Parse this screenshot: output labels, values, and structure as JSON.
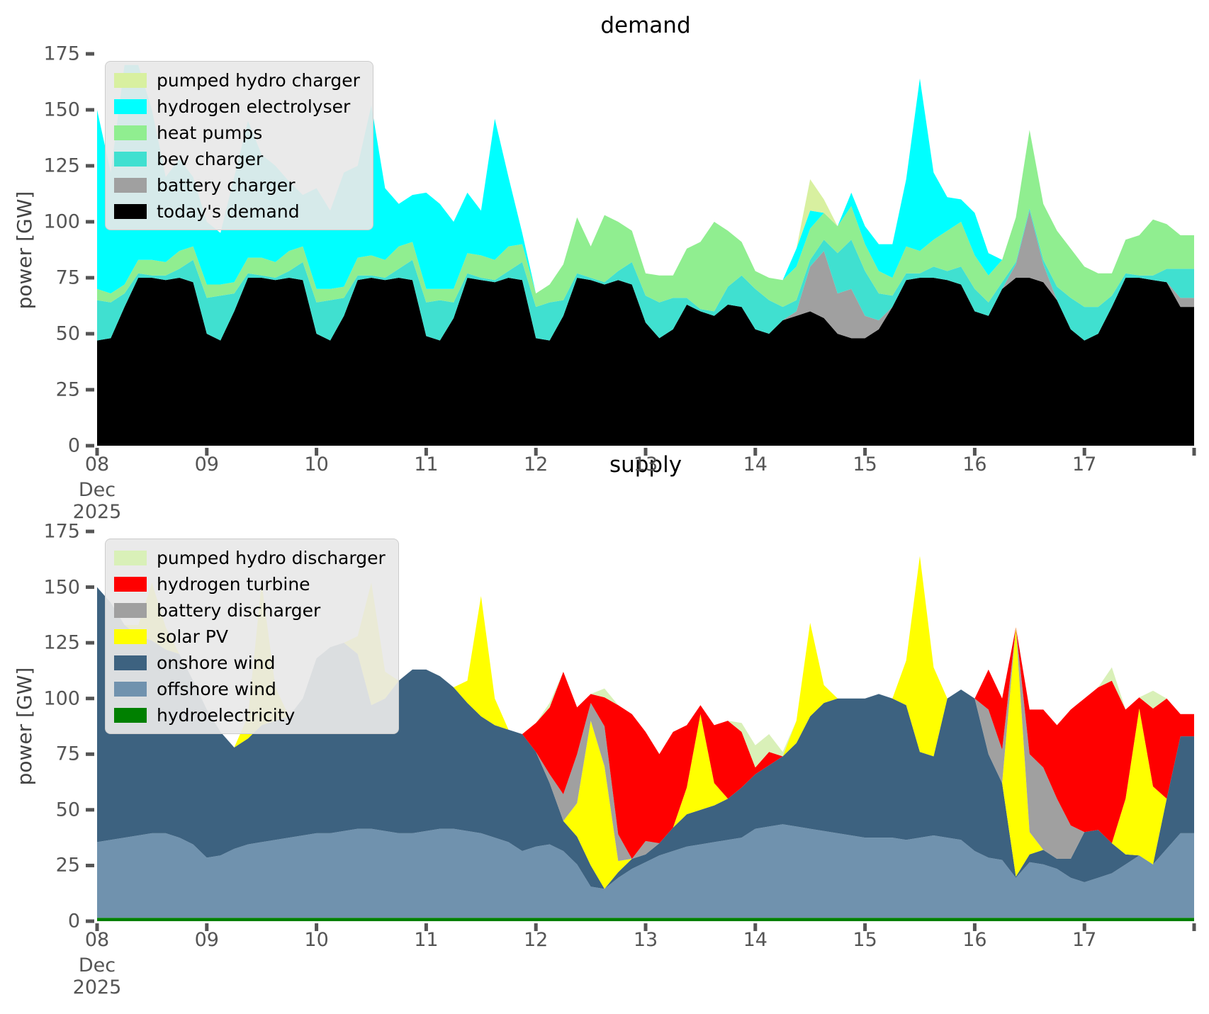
{
  "page": {
    "background": "#ffffff",
    "tick_color": "#555555",
    "text_color": "#000000"
  },
  "chart_data": [
    {
      "type": "area",
      "stacked": true,
      "title": "demand",
      "ylabel": "power [GW]",
      "ylim": [
        0,
        175
      ],
      "yticks": [
        0,
        25,
        50,
        75,
        100,
        125,
        150,
        175
      ],
      "x_tick_labels": [
        "08",
        "09",
        "10",
        "11",
        "12",
        "13",
        "14",
        "15",
        "16",
        "17"
      ],
      "x_first_tick_sublabels": [
        "Dec",
        "2025"
      ],
      "x_start": "Dec 08 2025 00:00",
      "x_step_hours": 3,
      "grid": false,
      "legend_position": "upper-left",
      "legend_order": [
        "pumped hydro charger",
        "hydrogen electrolyser",
        "heat pumps",
        "bev charger",
        "battery charger",
        "today's demand"
      ],
      "series": [
        {
          "name": "today's demand",
          "color": "#000000",
          "values": [
            47,
            48,
            62,
            75,
            75,
            74,
            75,
            73,
            50,
            47,
            60,
            75,
            75,
            74,
            75,
            74,
            50,
            47,
            58,
            74,
            75,
            74,
            75,
            74,
            49,
            47,
            57,
            75,
            74,
            73,
            75,
            74,
            48,
            47,
            58,
            75,
            74,
            72,
            74,
            72,
            55,
            48,
            52,
            63,
            60,
            58,
            63,
            62,
            52,
            50,
            56,
            58,
            60,
            57,
            50,
            48,
            48,
            52,
            62,
            74,
            75,
            75,
            74,
            72,
            60,
            58,
            70,
            75,
            75,
            73,
            65,
            52,
            47,
            50,
            62,
            75,
            75,
            74,
            73,
            62
          ]
        },
        {
          "name": "battery charger",
          "color": "#a0a0a0",
          "values": [
            0,
            0,
            0,
            0,
            0,
            0,
            0,
            0,
            0,
            0,
            0,
            0,
            0,
            0,
            0,
            0,
            0,
            0,
            0,
            0,
            0,
            0,
            0,
            0,
            0,
            0,
            0,
            0,
            0,
            0,
            0,
            0,
            0,
            0,
            0,
            0,
            0,
            0,
            0,
            0,
            0,
            0,
            0,
            0,
            0,
            0,
            0,
            0,
            0,
            0,
            0,
            2,
            20,
            30,
            18,
            22,
            10,
            4,
            0,
            0,
            0,
            0,
            0,
            0,
            0,
            0,
            0,
            6,
            30,
            8,
            0,
            0,
            0,
            0,
            0,
            0,
            0,
            0,
            0,
            4
          ]
        },
        {
          "name": "bev charger",
          "color": "#40e0d0",
          "values": [
            18,
            16,
            6,
            2,
            1,
            2,
            4,
            10,
            16,
            20,
            8,
            2,
            1,
            1,
            3,
            8,
            14,
            18,
            8,
            2,
            1,
            1,
            4,
            9,
            15,
            18,
            7,
            2,
            1,
            1,
            3,
            8,
            14,
            17,
            7,
            2,
            1,
            1,
            4,
            10,
            12,
            16,
            14,
            3,
            1,
            2,
            8,
            14,
            18,
            15,
            6,
            5,
            3,
            5,
            18,
            22,
            20,
            12,
            5,
            3,
            2,
            5,
            4,
            8,
            10,
            6,
            3,
            1,
            1,
            2,
            6,
            14,
            15,
            12,
            5,
            2,
            1,
            2,
            6,
            13
          ]
        },
        {
          "name": "heat pumps",
          "color": "#90ee90",
          "values": [
            5,
            4,
            4,
            6,
            7,
            6,
            8,
            6,
            6,
            5,
            5,
            7,
            8,
            7,
            9,
            7,
            6,
            5,
            5,
            8,
            9,
            8,
            10,
            8,
            6,
            5,
            6,
            9,
            10,
            9,
            11,
            8,
            6,
            8,
            16,
            25,
            14,
            30,
            22,
            14,
            10,
            12,
            10,
            22,
            30,
            40,
            25,
            15,
            8,
            10,
            12,
            15,
            14,
            12,
            12,
            15,
            12,
            10,
            8,
            12,
            10,
            12,
            18,
            20,
            15,
            12,
            10,
            20,
            35,
            25,
            25,
            22,
            18,
            15,
            10,
            15,
            18,
            25,
            20,
            15
          ]
        },
        {
          "name": "hydrogen electrolyser",
          "color": "#00ffff",
          "values": [
            80,
            54,
            98,
            87,
            67,
            38,
            41,
            31,
            28,
            23,
            47,
            61,
            46,
            43,
            31,
            23,
            45,
            35,
            51,
            41,
            67,
            32,
            19,
            21,
            43,
            38,
            30,
            27,
            20,
            63,
            31,
            5,
            0,
            0,
            0,
            0,
            0,
            0,
            0,
            0,
            0,
            0,
            0,
            0,
            0,
            0,
            0,
            0,
            0,
            0,
            0,
            8,
            8,
            0,
            0,
            6,
            8,
            12,
            15,
            30,
            77,
            30,
            15,
            10,
            19,
            10,
            0,
            0,
            0,
            0,
            0,
            0,
            0,
            0,
            0,
            0,
            0,
            0,
            0,
            0
          ]
        },
        {
          "name": "pumped hydro charger",
          "color": "#d8f0a0",
          "values": [
            0,
            0,
            0,
            0,
            0,
            0,
            0,
            0,
            0,
            0,
            0,
            0,
            0,
            0,
            0,
            0,
            0,
            0,
            0,
            0,
            0,
            0,
            0,
            0,
            0,
            0,
            0,
            0,
            0,
            0,
            0,
            0,
            0,
            0,
            0,
            0,
            0,
            0,
            0,
            0,
            0,
            0,
            0,
            0,
            0,
            0,
            0,
            0,
            0,
            0,
            0,
            0,
            14,
            6,
            0,
            0,
            0,
            0,
            0,
            0,
            0,
            0,
            0,
            0,
            0,
            0,
            0,
            0,
            0,
            0,
            0,
            0,
            0,
            0,
            0,
            0,
            0,
            0,
            0,
            0
          ]
        }
      ]
    },
    {
      "type": "area",
      "stacked": true,
      "title": "supply",
      "ylabel": "power [GW]",
      "ylim": [
        0,
        175
      ],
      "yticks": [
        0,
        25,
        50,
        75,
        100,
        125,
        150,
        175
      ],
      "x_tick_labels": [
        "08",
        "09",
        "10",
        "11",
        "12",
        "13",
        "14",
        "15",
        "16",
        "17"
      ],
      "x_first_tick_sublabels": [
        "Dec",
        "2025"
      ],
      "x_start": "Dec 08 2025 00:00",
      "x_step_hours": 3,
      "grid": false,
      "legend_position": "upper-left",
      "legend_order": [
        "pumped hydro discharger",
        "hydrogen turbine",
        "battery discharger",
        "solar PV",
        "onshore wind",
        "offshore wind",
        "hydroelectricity"
      ],
      "series": [
        {
          "name": "hydroelectricity",
          "color": "#008000",
          "values": [
            1.5,
            1.5,
            1.5,
            1.5,
            1.5,
            1.5,
            1.5,
            1.5,
            1.5,
            1.5,
            1.5,
            1.5,
            1.5,
            1.5,
            1.5,
            1.5,
            1.5,
            1.5,
            1.5,
            1.5,
            1.5,
            1.5,
            1.5,
            1.5,
            1.5,
            1.5,
            1.5,
            1.5,
            1.5,
            1.5,
            1.5,
            1.5,
            1.5,
            1.5,
            1.5,
            1.5,
            1.5,
            1.5,
            1.5,
            1.5,
            1.5,
            1.5,
            1.5,
            1.5,
            1.5,
            1.5,
            1.5,
            1.5,
            1.5,
            1.5,
            1.5,
            1.5,
            1.5,
            1.5,
            1.5,
            1.5,
            1.5,
            1.5,
            1.5,
            1.5,
            1.5,
            1.5,
            1.5,
            1.5,
            1.5,
            1.5,
            1.5,
            1.5,
            1.5,
            1.5,
            1.5,
            1.5,
            1.5,
            1.5,
            1.5,
            1.5,
            1.5,
            1.5,
            1.5,
            1.5
          ]
        },
        {
          "name": "offshore wind",
          "color": "#7092ae",
          "values": [
            34,
            35,
            36,
            37,
            38,
            38,
            36,
            33,
            27,
            28,
            31,
            33,
            34,
            35,
            36,
            37,
            38,
            38,
            39,
            40,
            40,
            39,
            38,
            38,
            39,
            40,
            40,
            39,
            38,
            36,
            34,
            30,
            32,
            33,
            30,
            24,
            14,
            13,
            18,
            22,
            25,
            28,
            30,
            32,
            33,
            34,
            35,
            36,
            40,
            41,
            42,
            41,
            40,
            39,
            38,
            37,
            36,
            36,
            36,
            35,
            36,
            37,
            36,
            35,
            30,
            27,
            26,
            18,
            25,
            24,
            22,
            18,
            16,
            18,
            20,
            24,
            28,
            24,
            31,
            38
          ]
        },
        {
          "name": "onshore wind",
          "color": "#3d6280",
          "values": [
            114.5,
            106.5,
            95.5,
            89.5,
            86.5,
            82.5,
            82.5,
            73.5,
            66.5,
            55.5,
            45.5,
            47.5,
            52.5,
            53.5,
            54.5,
            61.5,
            78.5,
            83.5,
            84.5,
            78.5,
            55.5,
            59.5,
            68.5,
            73.5,
            72.5,
            68.5,
            63.5,
            57.5,
            52.5,
            50.5,
            50.5,
            52.5,
            42.5,
            27.5,
            13.5,
            12.5,
            9.5,
            0,
            2.5,
            4.5,
            3.5,
            5.5,
            10.5,
            14.5,
            15.5,
            16.5,
            18.5,
            22.5,
            24.5,
            27.5,
            30.5,
            37.5,
            50.5,
            57.5,
            60.5,
            61.5,
            62.5,
            64.5,
            62.5,
            60.5,
            38.5,
            35.5,
            62.5,
            67.5,
            68.5,
            46.5,
            34.5,
            0.5,
            3.5,
            6.5,
            4.5,
            8.5,
            22.5,
            21.5,
            13.5,
            4.5,
            0,
            0,
            22.5,
            43.5
          ]
        },
        {
          "name": "solar PV",
          "color": "#ffff00",
          "values": [
            0,
            0,
            0,
            5,
            26,
            10,
            0,
            0,
            0,
            0,
            0,
            10,
            64,
            15,
            0,
            0,
            0,
            0,
            0,
            8,
            55,
            12,
            0,
            0,
            0,
            0,
            0,
            10,
            54,
            12,
            0,
            0,
            0,
            0,
            0,
            15,
            65,
            55,
            5,
            0,
            0,
            0,
            0,
            12,
            43,
            10,
            0,
            0,
            0,
            0,
            0,
            10,
            42,
            8,
            0,
            0,
            0,
            0,
            0,
            20,
            88,
            40,
            0,
            0,
            0,
            0,
            0,
            112,
            10,
            0,
            0,
            0,
            0,
            0,
            0,
            25,
            66,
            35,
            0,
            0
          ]
        },
        {
          "name": "battery discharger",
          "color": "#a0a0a0",
          "values": [
            0,
            0,
            0,
            0,
            0,
            0,
            0,
            0,
            0,
            0,
            0,
            0,
            0,
            0,
            0,
            0,
            0,
            0,
            0,
            0,
            0,
            0,
            0,
            0,
            0,
            0,
            0,
            0,
            0,
            0,
            0,
            0,
            0,
            4,
            12,
            22,
            8,
            18,
            12,
            0,
            6,
            0,
            0,
            0,
            0,
            0,
            0,
            0,
            0,
            0,
            0,
            0,
            0,
            0,
            0,
            0,
            0,
            0,
            0,
            0,
            0,
            0,
            0,
            0,
            0,
            20,
            15,
            0,
            35,
            37,
            27,
            15,
            0,
            0,
            0,
            0,
            0,
            0,
            0,
            0
          ]
        },
        {
          "name": "hydrogen turbine",
          "color": "#ff0000",
          "values": [
            0,
            0,
            0,
            0,
            0,
            0,
            0,
            0,
            0,
            0,
            0,
            0,
            0,
            0,
            0,
            0,
            0,
            0,
            0,
            0,
            0,
            0,
            0,
            0,
            0,
            0,
            0,
            0,
            0,
            0,
            0,
            0,
            13,
            30,
            55,
            21,
            4,
            13,
            58,
            65,
            49,
            40,
            43,
            28,
            4,
            26,
            35,
            25,
            3,
            6,
            0,
            0,
            0,
            0,
            0,
            0,
            0,
            0,
            0,
            0,
            0,
            0,
            0,
            0,
            0,
            18,
            23,
            0,
            20,
            26,
            33,
            52,
            60,
            64,
            73,
            40,
            5,
            35,
            45,
            10
          ]
        },
        {
          "name": "pumped hydro discharger",
          "color": "#d9f0b8",
          "values": [
            0,
            0,
            0,
            0,
            0,
            0,
            0,
            0,
            0,
            0,
            0,
            0,
            0,
            0,
            0,
            0,
            0,
            0,
            0,
            0,
            0,
            0,
            0,
            0,
            0,
            0,
            0,
            0,
            0,
            0,
            0,
            0,
            0,
            2,
            0,
            0,
            0,
            4,
            0,
            0,
            0,
            0,
            0,
            0,
            0,
            0,
            0,
            4,
            10,
            8,
            2,
            0,
            0,
            0,
            0,
            0,
            0,
            0,
            0,
            0,
            0,
            0,
            0,
            0,
            0,
            0,
            0,
            0,
            0,
            0,
            0,
            0,
            0,
            0,
            6,
            0,
            0,
            8,
            0,
            0
          ]
        }
      ]
    }
  ]
}
